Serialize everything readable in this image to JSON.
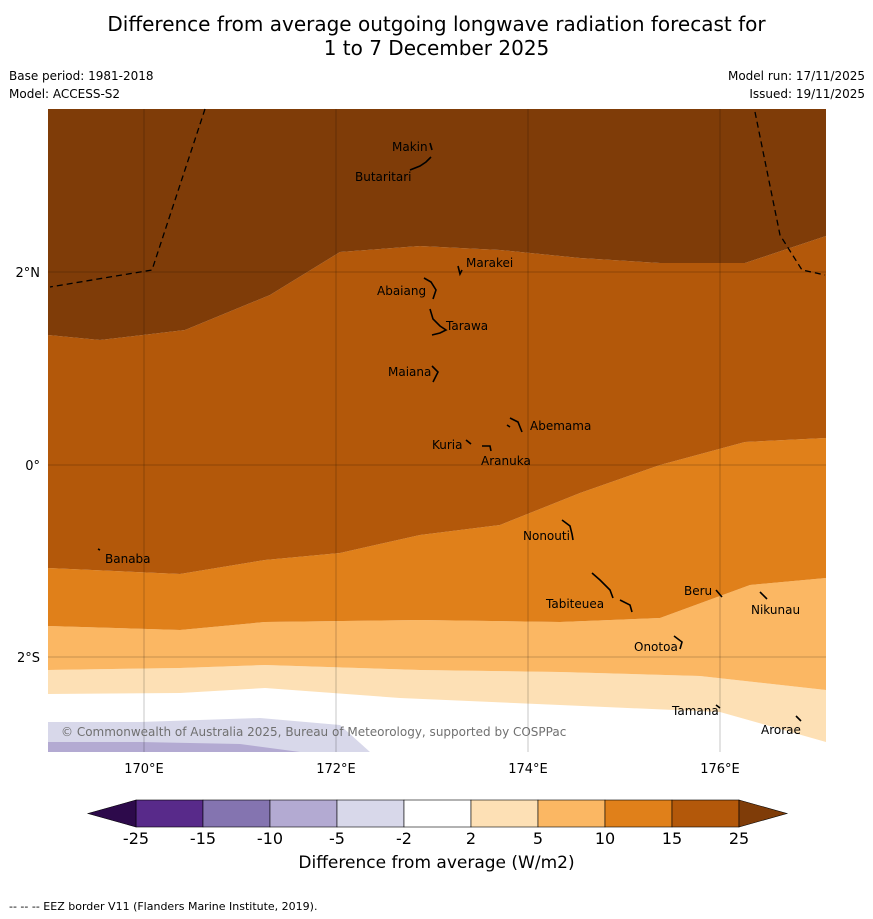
{
  "title_line1": "Difference from average outgoing longwave radiation forecast for",
  "title_line2": "1 to 7 December 2025",
  "base_period": "Base period: 1981-2018",
  "model": "Model: ACCESS-S2",
  "model_run": "Model run: 17/11/2025",
  "issued": "Issued: 19/11/2025",
  "copyright": "© Commonwealth of Australia 2025, Bureau of Meteorology, supported by COSPPac",
  "lat_labels": [
    "2°N",
    "0°",
    "2°S"
  ],
  "lon_labels": [
    "170°E",
    "172°E",
    "174°E",
    "176°E"
  ],
  "islands": [
    "Makin",
    "Butaritari",
    "Marakei",
    "Abaiang",
    "Tarawa",
    "Maiana",
    "Abemama",
    "Kuria",
    "Aranuka",
    "Banaba",
    "Nonouti",
    "Tabiteuea",
    "Beru",
    "Nikunau",
    "Onotoa",
    "Tamana",
    "Arorae"
  ],
  "legend": {
    "title": "Difference from average (W/m2)",
    "ticks": [
      "-25",
      "-15",
      "-10",
      "-5",
      "-2",
      "2",
      "5",
      "10",
      "15",
      "25"
    ],
    "colors": [
      "#582a8a",
      "#8474b0",
      "#b3aad2",
      "#d8d8ea",
      "#ffffff",
      "#fde0b5",
      "#fbb763",
      "#e0801a",
      "#b3580a",
      "#7f3c08"
    ],
    "end_low_color": "#2d0a4b",
    "end_high_color": "#7f3c08"
  },
  "footer": "--  --  -- EEZ border V11 (Flanders Marine Institute, 2019)."
}
